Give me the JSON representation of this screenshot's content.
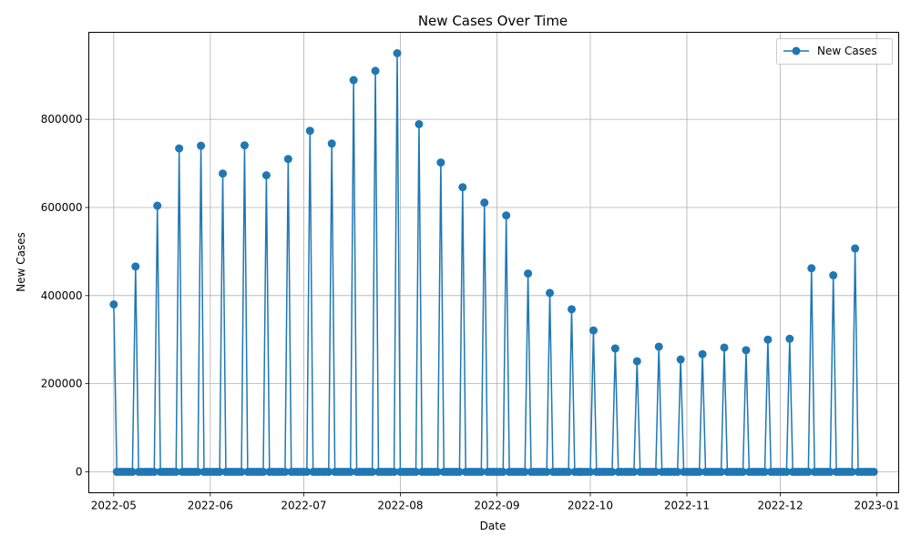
{
  "chart_data": {
    "type": "line",
    "title": "New Cases Over Time",
    "xlabel": "Date",
    "ylabel": "New Cases",
    "x_start": "2022-05-01",
    "x_end": "2022-12-31",
    "xlim": [
      "2022-04-23",
      "2023-01-08"
    ],
    "ylim": [
      -47500,
      997500
    ],
    "x_ticks": [
      "2022-05",
      "2022-06",
      "2022-07",
      "2022-08",
      "2022-09",
      "2022-10",
      "2022-11",
      "2022-12",
      "2023-01"
    ],
    "y_ticks": [
      0,
      200000,
      400000,
      600000,
      800000
    ],
    "y_tick_labels": [
      "0",
      "200000",
      "400000",
      "600000",
      "800000"
    ],
    "grid": true,
    "legend_position": "top-right",
    "series": [
      {
        "name": "New Cases",
        "color": "#1f77b4",
        "marker": "circle",
        "baseline_value": 0,
        "nonzero_points": [
          {
            "date": "2022-05-01",
            "value": 380000
          },
          {
            "date": "2022-05-08",
            "value": 466000
          },
          {
            "date": "2022-05-15",
            "value": 604000
          },
          {
            "date": "2022-05-22",
            "value": 734000
          },
          {
            "date": "2022-05-29",
            "value": 740000
          },
          {
            "date": "2022-06-05",
            "value": 677000
          },
          {
            "date": "2022-06-12",
            "value": 741000
          },
          {
            "date": "2022-06-19",
            "value": 673000
          },
          {
            "date": "2022-06-26",
            "value": 710000
          },
          {
            "date": "2022-07-03",
            "value": 774000
          },
          {
            "date": "2022-07-10",
            "value": 745000
          },
          {
            "date": "2022-07-17",
            "value": 889000
          },
          {
            "date": "2022-07-24",
            "value": 910000
          },
          {
            "date": "2022-07-31",
            "value": 950000
          },
          {
            "date": "2022-08-07",
            "value": 789000
          },
          {
            "date": "2022-08-14",
            "value": 702000
          },
          {
            "date": "2022-08-21",
            "value": 646000
          },
          {
            "date": "2022-08-28",
            "value": 611000
          },
          {
            "date": "2022-09-04",
            "value": 582000
          },
          {
            "date": "2022-09-11",
            "value": 450000
          },
          {
            "date": "2022-09-18",
            "value": 406000
          },
          {
            "date": "2022-09-25",
            "value": 369000
          },
          {
            "date": "2022-10-02",
            "value": 321000
          },
          {
            "date": "2022-10-09",
            "value": 280000
          },
          {
            "date": "2022-10-16",
            "value": 251000
          },
          {
            "date": "2022-10-23",
            "value": 284000
          },
          {
            "date": "2022-10-30",
            "value": 255000
          },
          {
            "date": "2022-11-06",
            "value": 267000
          },
          {
            "date": "2022-11-13",
            "value": 282000
          },
          {
            "date": "2022-11-20",
            "value": 276000
          },
          {
            "date": "2022-11-27",
            "value": 300000
          },
          {
            "date": "2022-12-04",
            "value": 302000
          },
          {
            "date": "2022-12-11",
            "value": 462000
          },
          {
            "date": "2022-12-18",
            "value": 446000
          },
          {
            "date": "2022-12-25",
            "value": 507000
          }
        ]
      }
    ]
  }
}
